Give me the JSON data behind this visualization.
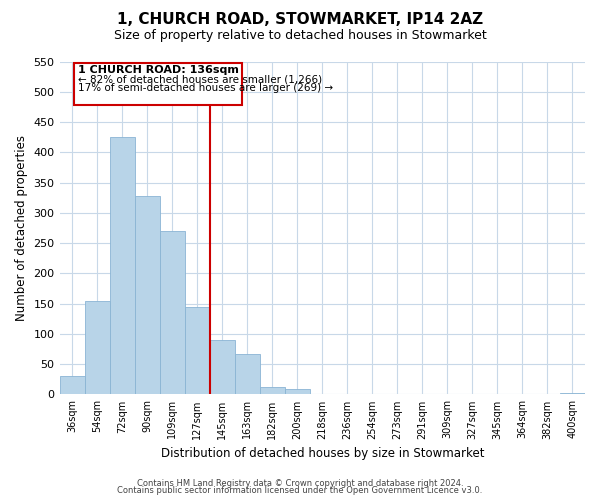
{
  "title": "1, CHURCH ROAD, STOWMARKET, IP14 2AZ",
  "subtitle": "Size of property relative to detached houses in Stowmarket",
  "xlabel": "Distribution of detached houses by size in Stowmarket",
  "ylabel": "Number of detached properties",
  "bar_labels": [
    "36sqm",
    "54sqm",
    "72sqm",
    "90sqm",
    "109sqm",
    "127sqm",
    "145sqm",
    "163sqm",
    "182sqm",
    "200sqm",
    "218sqm",
    "236sqm",
    "254sqm",
    "273sqm",
    "291sqm",
    "309sqm",
    "327sqm",
    "345sqm",
    "364sqm",
    "382sqm",
    "400sqm"
  ],
  "bar_values": [
    30,
    155,
    425,
    328,
    270,
    145,
    90,
    67,
    13,
    9,
    0,
    0,
    0,
    0,
    0,
    0,
    0,
    0,
    0,
    0,
    2
  ],
  "bar_color": "#b8d4e8",
  "bar_edge_color": "#8ab4d4",
  "ylim": [
    0,
    550
  ],
  "yticks": [
    0,
    50,
    100,
    150,
    200,
    250,
    300,
    350,
    400,
    450,
    500,
    550
  ],
  "vline_color": "#cc0000",
  "annotation_title": "1 CHURCH ROAD: 136sqm",
  "annotation_line1": "← 82% of detached houses are smaller (1,266)",
  "annotation_line2": "17% of semi-detached houses are larger (269) →",
  "annotation_box_color": "#cc0000",
  "footer_line1": "Contains HM Land Registry data © Crown copyright and database right 2024.",
  "footer_line2": "Contains public sector information licensed under the Open Government Licence v3.0.",
  "title_fontsize": 11,
  "subtitle_fontsize": 9,
  "background_color": "#ffffff",
  "grid_color": "#c8d8e8"
}
